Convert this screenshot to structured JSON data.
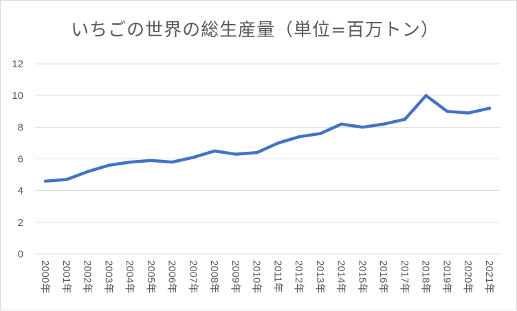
{
  "chart_data": {
    "type": "line",
    "title": "いちごの世界の総生産量（単位=百万トン）",
    "xlabel": "",
    "ylabel": "",
    "categories": [
      "2000年",
      "2001年",
      "2002年",
      "2003年",
      "2004年",
      "2005年",
      "2006年",
      "2007年",
      "2008年",
      "2009年",
      "2010年",
      "2011年",
      "2012年",
      "2013年",
      "2014年",
      "2015年",
      "2016年",
      "2017年",
      "2018年",
      "2019年",
      "2020年",
      "2021年"
    ],
    "series": [
      {
        "values": [
          4.6,
          4.7,
          5.2,
          5.6,
          5.8,
          5.9,
          5.8,
          6.1,
          6.5,
          6.3,
          6.4,
          7.0,
          7.4,
          7.6,
          8.2,
          8.0,
          8.2,
          8.5,
          10.0,
          9.0,
          8.9,
          9.2
        ],
        "color": "#4472c4"
      }
    ],
    "ylim": [
      0,
      12
    ],
    "yticks": [
      "0",
      "2",
      "4",
      "6",
      "8",
      "10",
      "12"
    ],
    "grid": true,
    "legend": "none"
  }
}
